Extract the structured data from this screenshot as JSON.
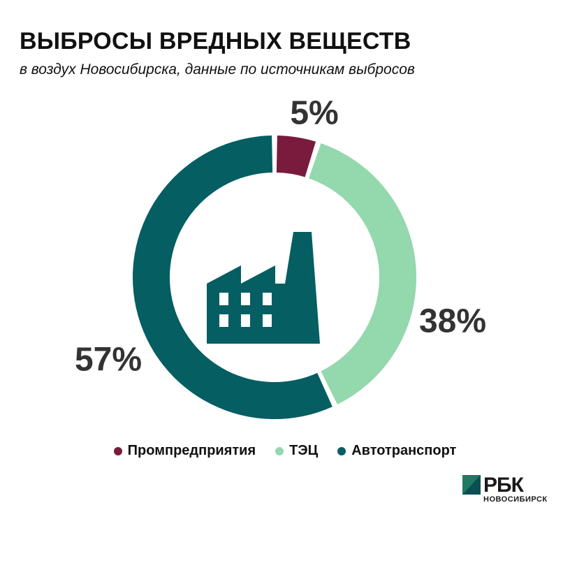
{
  "header": {
    "title": "ВЫБРОСЫ ВРЕДНЫХ ВЕЩЕСТВ",
    "subtitle": "в воздух Новосибирска, данные по источникам выбросов"
  },
  "chart_data": {
    "type": "pie",
    "donut": true,
    "categories": [
      "Промпредприятия",
      "ТЭЦ",
      "Автотранспорт"
    ],
    "values": [
      5,
      38,
      57
    ],
    "labels": [
      "5%",
      "38%",
      "57%"
    ],
    "colors": [
      "#7a1a3d",
      "#94d8ad",
      "#045e62"
    ],
    "legend_position": "bottom",
    "center_icon": "factory-icon"
  },
  "legend": {
    "items": [
      {
        "label": "Промпредприятия",
        "color": "#7a1a3d"
      },
      {
        "label": "ТЭЦ",
        "color": "#94d8ad"
      },
      {
        "label": "Автотранспорт",
        "color": "#045e62"
      }
    ]
  },
  "logo": {
    "word": "РБК",
    "sub": "НОВОСИБИРСК",
    "icon": "rbc-logo-icon"
  }
}
